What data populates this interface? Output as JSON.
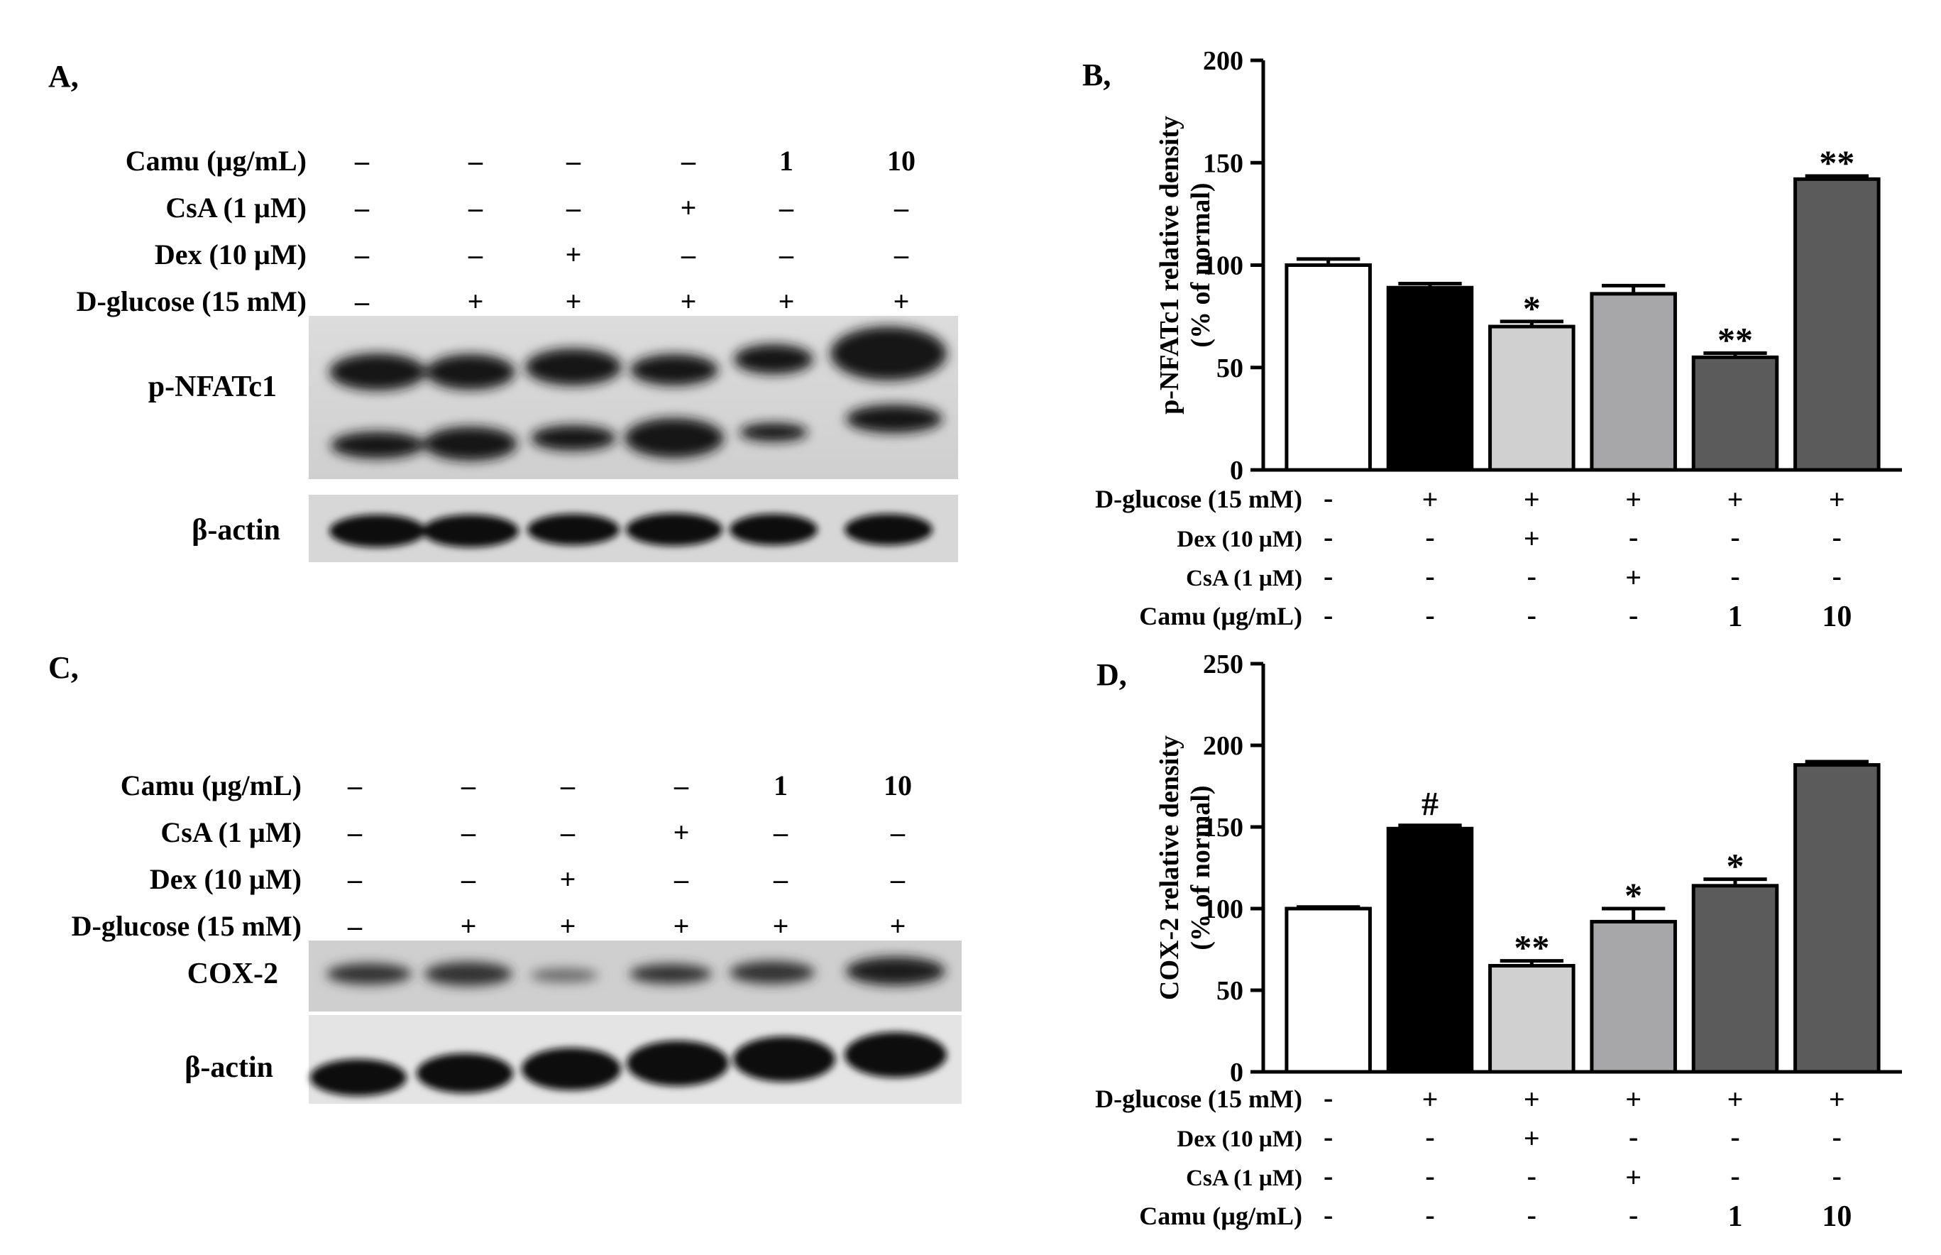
{
  "panels": {
    "A": {
      "label": "A,",
      "rows": [
        {
          "name": "Camu (µg/mL)",
          "values": [
            "–",
            "–",
            "–",
            "–",
            "1",
            "10"
          ]
        },
        {
          "name": "CsA (1 µM)",
          "values": [
            "–",
            "–",
            "–",
            "+",
            "–",
            "–"
          ]
        },
        {
          "name": "Dex (10 µM)",
          "values": [
            "–",
            "–",
            "+",
            "–",
            "–",
            "–"
          ]
        },
        {
          "name": "D-glucose (15 mM)",
          "values": [
            "–",
            "+",
            "+",
            "+",
            "+",
            "+"
          ]
        }
      ],
      "blots": [
        "p-NFATc1",
        "β-actin"
      ]
    },
    "C": {
      "label": "C,",
      "rows": [
        {
          "name": "Camu (µg/mL)",
          "values": [
            "–",
            "–",
            "–",
            "–",
            "1",
            "10"
          ]
        },
        {
          "name": "CsA (1 µM)",
          "values": [
            "–",
            "–",
            "–",
            "+",
            "–",
            "–"
          ]
        },
        {
          "name": "Dex (10 µM)",
          "values": [
            "–",
            "–",
            "+",
            "–",
            "–",
            "–"
          ]
        },
        {
          "name": "D-glucose (15 mM)",
          "values": [
            "–",
            "+",
            "+",
            "+",
            "+",
            "+"
          ]
        }
      ],
      "blots": [
        "COX-2",
        "β-actin"
      ]
    }
  },
  "colors": {
    "normal": "#ffffff",
    "dglucose": "#000000",
    "dex": "#d0d0d0",
    "csa": "#a7a7aa",
    "camu1": "#5b5b5b",
    "camu10": "#5b5b5b"
  },
  "chart_data": [
    {
      "panel_label": "B,",
      "type": "bar",
      "ylabel": "p-NFATc1 relative density",
      "ylabel2": "(% of normal)",
      "ylim": [
        0,
        200
      ],
      "yticks": [
        "0",
        "50",
        "100",
        "150",
        "200"
      ],
      "values": [
        100,
        89,
        70,
        86,
        55,
        142
      ],
      "errors": [
        3,
        2,
        2.5,
        4,
        2,
        1.5
      ],
      "annotations": [
        "",
        "",
        "*",
        "",
        "**",
        "**"
      ],
      "condition_rows": [
        {
          "name": "D-glucose (15 mM)",
          "values": [
            "-",
            "+",
            "+",
            "+",
            "+",
            "+"
          ]
        },
        {
          "name": "Dex (10 µM)",
          "values": [
            "-",
            "-",
            "+",
            "-",
            "-",
            "-"
          ]
        },
        {
          "name": "CsA (1 µM)",
          "values": [
            "-",
            "-",
            "-",
            "+",
            "-",
            "-"
          ]
        },
        {
          "name": "Camu (µg/mL)",
          "values": [
            "-",
            "-",
            "-",
            "-",
            "1",
            "10"
          ]
        }
      ]
    },
    {
      "panel_label": "D,",
      "type": "bar",
      "ylabel": "COX-2 relative density",
      "ylabel2": "(% of normal)",
      "ylim": [
        0,
        250
      ],
      "yticks": [
        "0",
        "50",
        "100",
        "150",
        "200",
        "250"
      ],
      "values": [
        100,
        149,
        65,
        92,
        114,
        188
      ],
      "errors": [
        1,
        2,
        3,
        8,
        4,
        2
      ],
      "annotations": [
        "",
        "#",
        "**",
        "*",
        "*",
        ""
      ],
      "condition_rows": [
        {
          "name": "D-glucose (15 mM)",
          "values": [
            "-",
            "+",
            "+",
            "+",
            "+",
            "+"
          ]
        },
        {
          "name": "Dex (10 µM)",
          "values": [
            "-",
            "-",
            "+",
            "-",
            "-",
            "-"
          ]
        },
        {
          "name": "CsA (1 µM)",
          "values": [
            "-",
            "-",
            "-",
            "+",
            "-",
            "-"
          ]
        },
        {
          "name": "Camu (µg/mL)",
          "values": [
            "-",
            "-",
            "-",
            "-",
            "1",
            "10"
          ]
        }
      ]
    }
  ]
}
